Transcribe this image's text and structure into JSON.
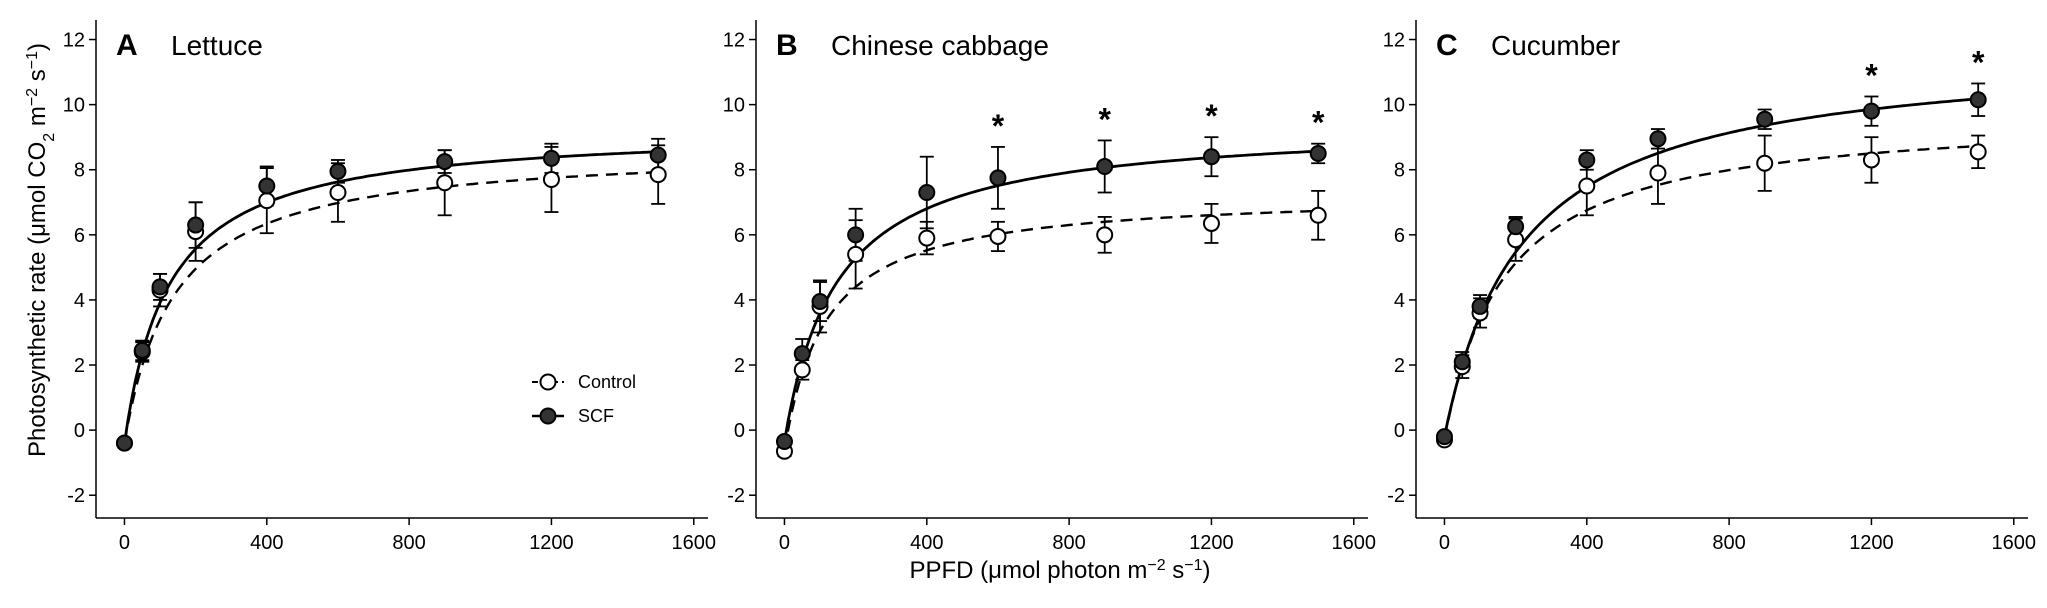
{
  "figure": {
    "xlabel": {
      "main": "PPFD (μmol photon m",
      "sup1": "−2",
      "mid": " s",
      "sup2": "−1",
      "end": ")"
    },
    "ylabel": {
      "main": "Photosynthetic rate (μmol CO",
      "sub": "2",
      "mid1": " m",
      "sup1": "−2",
      "mid2": " s",
      "sup2": "−1",
      "end": ")"
    },
    "legend": {
      "items": [
        "Control",
        "SCF"
      ]
    }
  },
  "chart_data": [
    {
      "type": "scatter",
      "letter": "A",
      "title": "Lettuce",
      "x": [
        0,
        50,
        100,
        200,
        400,
        600,
        900,
        1200,
        1500
      ],
      "xlim": [
        -80,
        1640
      ],
      "ylim": [
        -2.7,
        12.6
      ],
      "xticks": [
        "0",
        "400",
        "800",
        "1200",
        "1600"
      ],
      "yticks": [
        "-2",
        "0",
        "2",
        "4",
        "6",
        "8",
        "10",
        "12"
      ],
      "series": [
        {
          "name": "Control",
          "values": [
            -0.4,
            2.4,
            4.3,
            6.1,
            7.05,
            7.3,
            7.6,
            7.7,
            7.85
          ],
          "errors": [
            0.1,
            0.3,
            0.5,
            0.9,
            1.0,
            0.9,
            1.0,
            1.0,
            0.9
          ],
          "pmax": 8.7,
          "k": 140
        },
        {
          "name": "SCF",
          "values": [
            -0.4,
            2.45,
            4.4,
            6.3,
            7.5,
            7.95,
            8.25,
            8.35,
            8.45
          ],
          "errors": [
            0.1,
            0.3,
            0.4,
            0.7,
            0.6,
            0.35,
            0.35,
            0.45,
            0.5
          ],
          "pmax": 9.3,
          "k": 125
        }
      ],
      "stars": []
    },
    {
      "type": "scatter",
      "letter": "B",
      "title": "Chinese cabbage",
      "x": [
        0,
        50,
        100,
        200,
        400,
        600,
        900,
        1200,
        1500
      ],
      "xlim": [
        -80,
        1640
      ],
      "ylim": [
        -2.7,
        12.6
      ],
      "xticks": [
        "0",
        "400",
        "800",
        "1200",
        "1600"
      ],
      "yticks": [
        "-2",
        "0",
        "2",
        "4",
        "6",
        "8",
        "10",
        "12"
      ],
      "series": [
        {
          "name": "Control",
          "values": [
            -0.65,
            1.85,
            3.8,
            5.4,
            5.9,
            5.95,
            6.0,
            6.35,
            6.6
          ],
          "errors": [
            0.15,
            0.3,
            0.8,
            1.05,
            0.5,
            0.45,
            0.55,
            0.6,
            0.75
          ],
          "pmax": 7.3,
          "k": 115
        },
        {
          "name": "SCF",
          "values": [
            -0.35,
            2.35,
            3.95,
            6.0,
            7.3,
            7.75,
            8.1,
            8.4,
            8.5
          ],
          "errors": [
            0.1,
            0.45,
            0.6,
            0.8,
            1.1,
            0.95,
            0.8,
            0.6,
            0.3
          ],
          "pmax": 9.45,
          "k": 148
        }
      ],
      "stars": [
        600,
        900,
        1200,
        1500
      ],
      "star_label": "*"
    },
    {
      "type": "scatter",
      "letter": "C",
      "title": "Cucumber",
      "x": [
        0,
        50,
        100,
        200,
        400,
        600,
        900,
        1200,
        1500
      ],
      "xlim": [
        -80,
        1640
      ],
      "ylim": [
        -2.7,
        12.6
      ],
      "xticks": [
        "0",
        "400",
        "800",
        "1200",
        "1600"
      ],
      "yticks": [
        "-2",
        "0",
        "2",
        "4",
        "6",
        "8",
        "10",
        "12"
      ],
      "series": [
        {
          "name": "Control",
          "values": [
            -0.3,
            1.95,
            3.6,
            5.85,
            7.5,
            7.9,
            8.2,
            8.3,
            8.55
          ],
          "errors": [
            0.1,
            0.35,
            0.45,
            0.65,
            0.9,
            0.95,
            0.85,
            0.7,
            0.5
          ],
          "pmax": 9.75,
          "k": 170
        },
        {
          "name": "SCF",
          "values": [
            -0.2,
            2.1,
            3.8,
            6.25,
            8.3,
            8.95,
            9.55,
            9.8,
            10.15
          ],
          "errors": [
            0.1,
            0.3,
            0.35,
            0.3,
            0.3,
            0.3,
            0.3,
            0.45,
            0.5
          ],
          "pmax": 11.7,
          "k": 220
        }
      ],
      "stars": [
        1200,
        1500
      ],
      "star_label": "*"
    }
  ]
}
